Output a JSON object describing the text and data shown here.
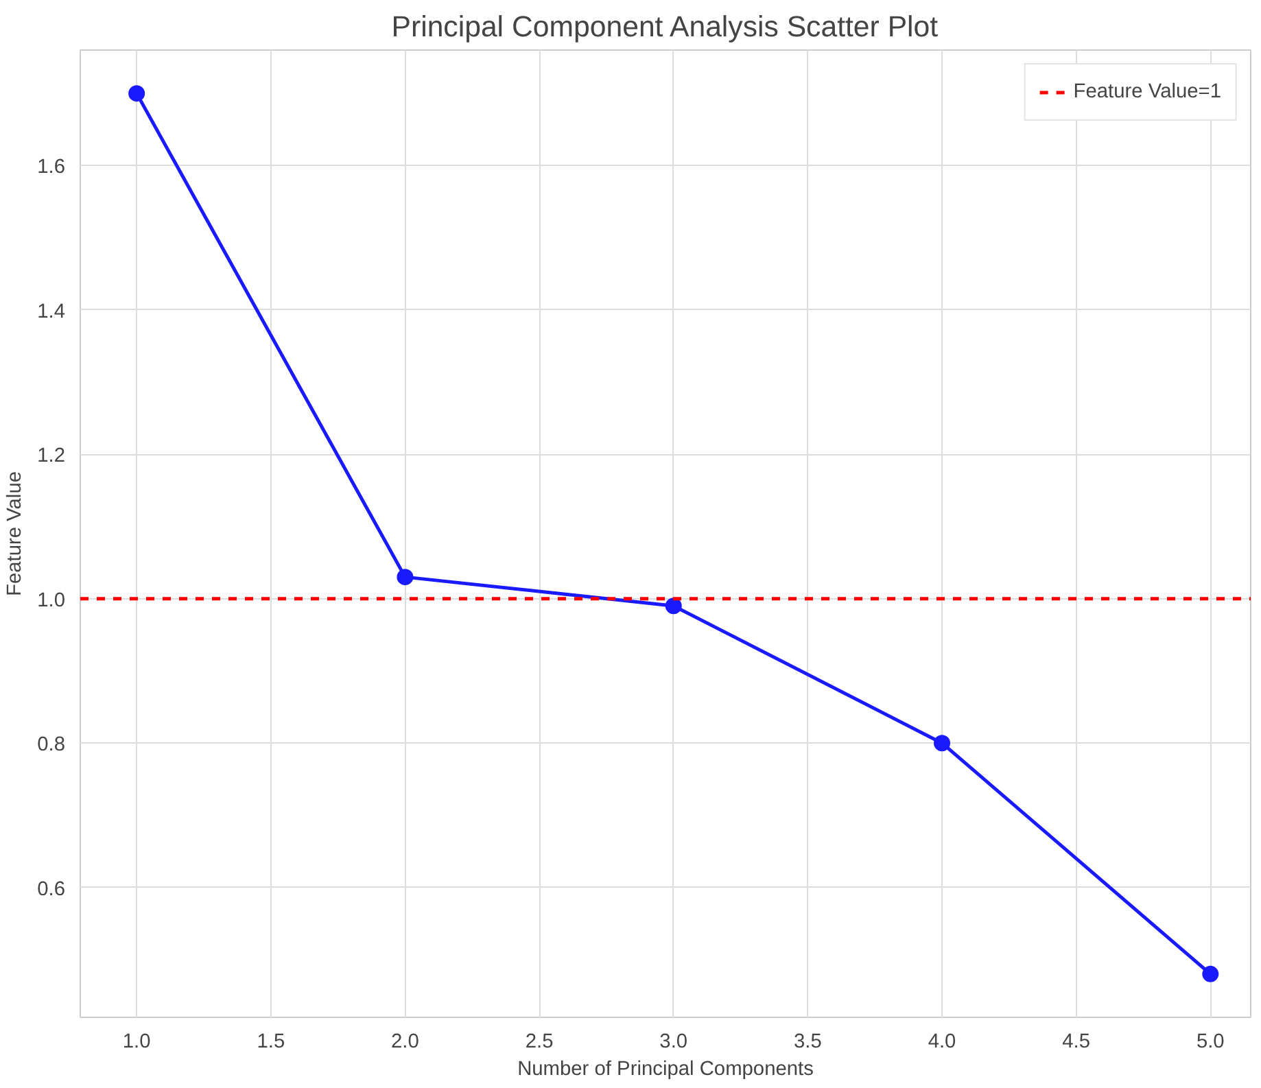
{
  "chart_data": {
    "type": "line",
    "title": "Principal Component Analysis Scatter Plot",
    "xlabel": "Number of Principal Components",
    "ylabel": "Feature Value",
    "x": [
      1.0,
      2.0,
      3.0,
      4.0,
      5.0
    ],
    "series": [
      {
        "color": "#1a1aff",
        "values": [
          1.7,
          1.03,
          0.99,
          0.8,
          0.48
        ]
      }
    ],
    "xlim": [
      0.79,
      5.15
    ],
    "ylim": [
      0.42,
      1.76
    ],
    "xticks": [
      {
        "value": 1.0,
        "label": "1.0"
      },
      {
        "value": 1.5,
        "label": "1.5"
      },
      {
        "value": 2.0,
        "label": "2.0"
      },
      {
        "value": 2.5,
        "label": "2.5"
      },
      {
        "value": 3.0,
        "label": "3.0"
      },
      {
        "value": 3.5,
        "label": "3.5"
      },
      {
        "value": 4.0,
        "label": "4.0"
      },
      {
        "value": 4.5,
        "label": "4.5"
      },
      {
        "value": 5.0,
        "label": "5.0"
      }
    ],
    "yticks": [
      {
        "value": 0.6,
        "label": "0.6"
      },
      {
        "value": 0.8,
        "label": "0.8"
      },
      {
        "value": 1.0,
        "label": "1.0"
      },
      {
        "value": 1.2,
        "label": "1.2"
      },
      {
        "value": 1.4,
        "label": "1.4"
      },
      {
        "value": 1.6,
        "label": "1.6"
      }
    ],
    "ref_lines": [
      {
        "axis": "y",
        "value": 1,
        "label": "Feature Value=1",
        "color": "#ff0000",
        "line_style": "dashed"
      }
    ],
    "grid": true,
    "legend": "top right",
    "marker": "circle",
    "line_style": "solid"
  }
}
